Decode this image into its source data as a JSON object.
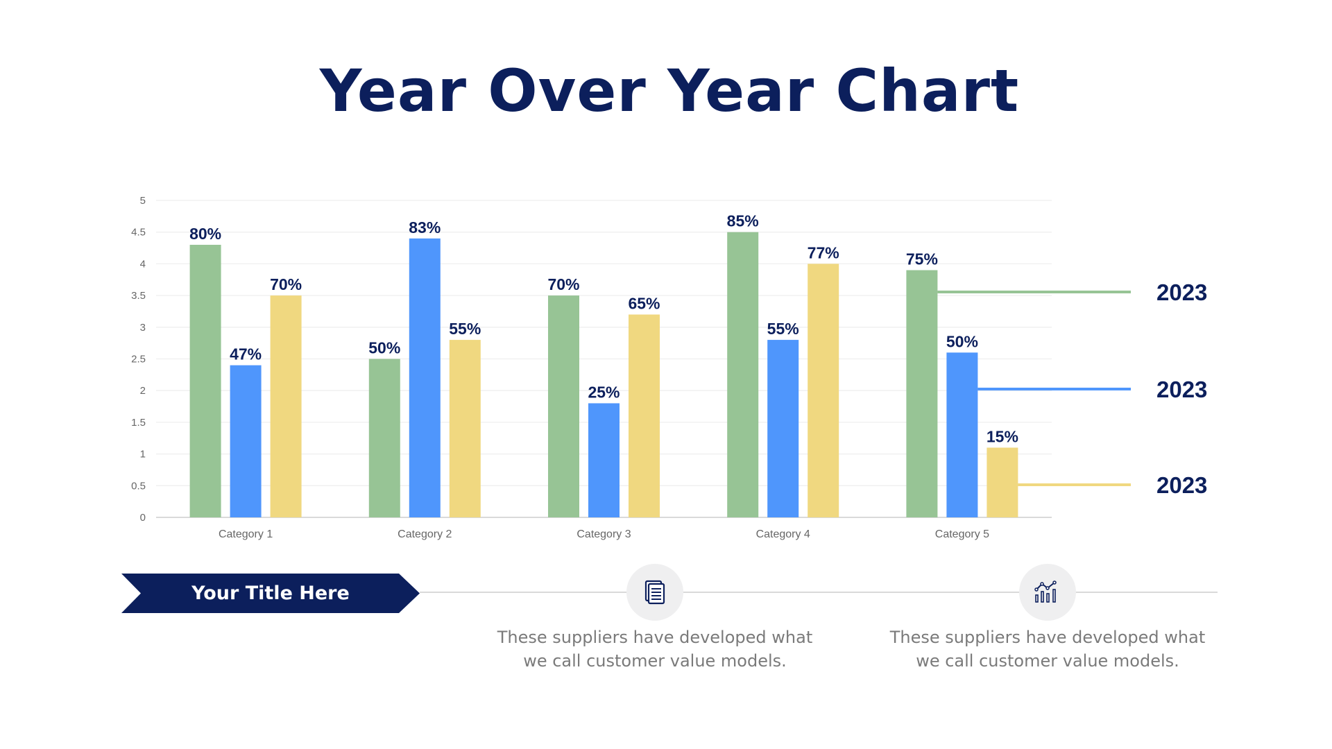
{
  "title": "Year Over Year Chart",
  "chart_data": {
    "type": "bar",
    "title": "",
    "xlabel": "",
    "ylabel": "",
    "ylim": [
      0,
      5
    ],
    "yticks": [
      "0",
      "0.5",
      "1",
      "1.5",
      "2",
      "2.5",
      "3",
      "3.5",
      "4",
      "4.5",
      "5"
    ],
    "grid": true,
    "categories": [
      "Category 1",
      "Category 2",
      "Category 3",
      "Category 4",
      "Category 5"
    ],
    "series": [
      {
        "name": "2023",
        "color": "#97c495",
        "values": [
          4.3,
          2.5,
          3.5,
          4.5,
          3.9
        ],
        "labels": [
          "80%",
          "50%",
          "70%",
          "85%",
          "75%"
        ]
      },
      {
        "name": "2023",
        "color": "#4f96fc",
        "values": [
          2.4,
          4.4,
          1.8,
          2.8,
          2.6
        ],
        "labels": [
          "47%",
          "83%",
          "25%",
          "55%",
          "50%"
        ]
      },
      {
        "name": "2023",
        "color": "#f0d880",
        "values": [
          3.5,
          2.8,
          3.2,
          4.0,
          1.1
        ],
        "labels": [
          "70%",
          "55%",
          "65%",
          "77%",
          "15%"
        ]
      }
    ],
    "legend_placement": "right"
  },
  "banner": {
    "label": "Your Title Here",
    "color": "#0c1f5c"
  },
  "items": [
    {
      "icon": "document-icon",
      "text_line1": "These suppliers have developed what",
      "text_line2": "we call customer value models."
    },
    {
      "icon": "analytics-chart-icon",
      "text_line1": "These suppliers have developed what",
      "text_line2": "we call customer value models."
    }
  ]
}
